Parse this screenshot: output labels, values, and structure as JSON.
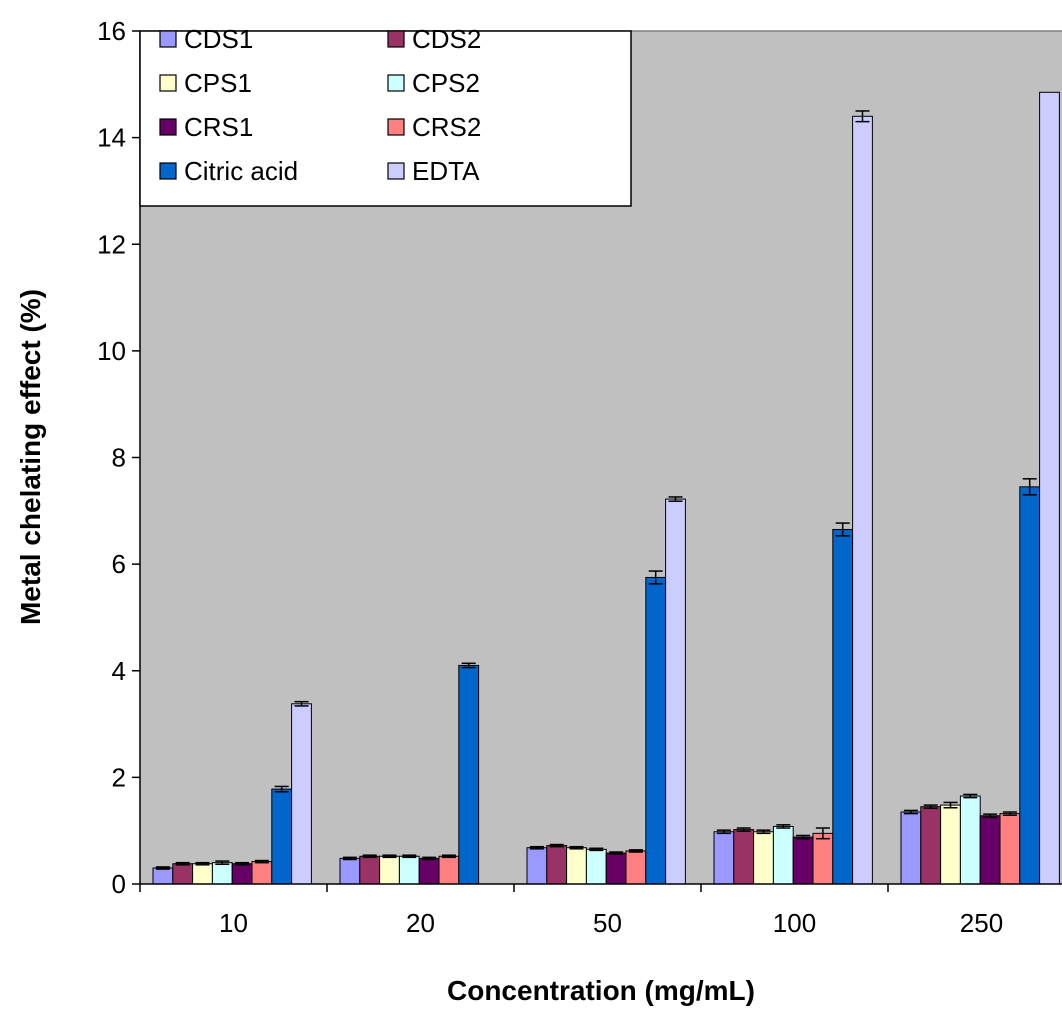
{
  "chart_data": {
    "type": "bar",
    "title": "",
    "xlabel": "Concentration (mg/mL)",
    "ylabel": "Metal chelating effect (%)",
    "ylim": [
      0,
      16
    ],
    "yticks": [
      "0",
      "2",
      "4",
      "6",
      "8",
      "10",
      "12",
      "14",
      "16"
    ],
    "categories": [
      "10",
      "20",
      "50",
      "100",
      "250"
    ],
    "grid": false,
    "legend_position": "top-left",
    "plot_background": "#c0c0c0",
    "series": [
      {
        "name": "CDS1",
        "color": "#9999ff",
        "values": [
          0.3,
          0.48,
          0.68,
          0.98,
          1.35
        ],
        "errors": [
          0.02,
          0.02,
          0.02,
          0.03,
          0.03
        ]
      },
      {
        "name": "CDS2",
        "color": "#993366",
        "values": [
          0.38,
          0.52,
          0.72,
          1.02,
          1.45
        ],
        "errors": [
          0.02,
          0.02,
          0.02,
          0.03,
          0.03
        ]
      },
      {
        "name": "CPS1",
        "color": "#ffffcc",
        "values": [
          0.38,
          0.52,
          0.68,
          0.98,
          1.48
        ],
        "errors": [
          0.02,
          0.02,
          0.02,
          0.03,
          0.05
        ]
      },
      {
        "name": "CPS2",
        "color": "#ccffff",
        "values": [
          0.4,
          0.52,
          0.65,
          1.08,
          1.65
        ],
        "errors": [
          0.03,
          0.02,
          0.02,
          0.03,
          0.03
        ]
      },
      {
        "name": "CRS1",
        "color": "#660066",
        "values": [
          0.38,
          0.48,
          0.58,
          0.88,
          1.28
        ],
        "errors": [
          0.02,
          0.02,
          0.02,
          0.03,
          0.03
        ]
      },
      {
        "name": "CRS2",
        "color": "#ff8080",
        "values": [
          0.42,
          0.52,
          0.62,
          0.95,
          1.32
        ],
        "errors": [
          0.02,
          0.02,
          0.02,
          0.1,
          0.03
        ]
      },
      {
        "name": "Citric acid",
        "color": "#0066cc",
        "values": [
          1.78,
          4.1,
          5.75,
          6.65,
          7.45
        ],
        "errors": [
          0.05,
          0.04,
          0.12,
          0.12,
          0.15
        ]
      },
      {
        "name": "EDTA",
        "color": "#ccccff",
        "values": [
          3.38,
          null,
          7.22,
          14.4,
          14.85
        ],
        "errors": [
          0.04,
          0,
          0.04,
          0.1,
          0
        ]
      }
    ]
  }
}
